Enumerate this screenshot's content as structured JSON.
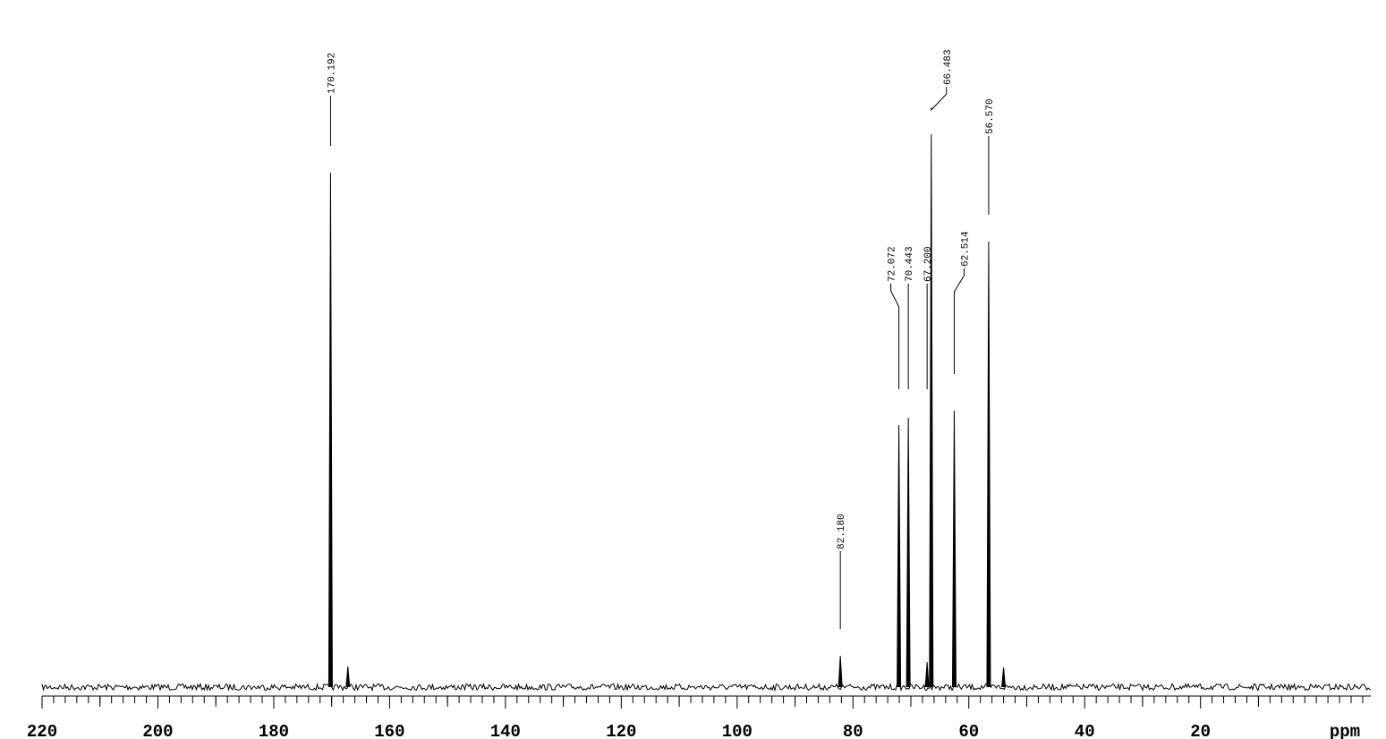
{
  "chart_data": {
    "type": "spectrum",
    "x": [
      170.192,
      167.2,
      82.18,
      72.072,
      70.443,
      67.2,
      66.483,
      62.514,
      56.57,
      54.0
    ],
    "x_labels": [
      "170.192",
      null,
      "82.180",
      "72.072",
      "70.443",
      "67.200",
      "66.483",
      "62.514",
      "56.570",
      null
    ],
    "values": [
      575,
      23,
      35,
      293,
      301,
      28,
      618,
      309,
      498,
      22
    ],
    "color": "#000000",
    "xlabel": "ppm",
    "xlim": [
      220,
      -9.4
    ],
    "ylim": [
      -10,
      768
    ],
    "xticks": [
      220,
      200,
      180,
      160,
      140,
      120,
      100,
      80,
      60,
      40,
      20
    ],
    "xminorticks": [
      218,
      216,
      214,
      212,
      210,
      208,
      206,
      204,
      202,
      198,
      196,
      194,
      192,
      190,
      188,
      186,
      184,
      182,
      178,
      176,
      174,
      172,
      170,
      168,
      166,
      164,
      162,
      158,
      156,
      154,
      152,
      150,
      148,
      146,
      144,
      142,
      138,
      136,
      134,
      132,
      130,
      128,
      126,
      124,
      122,
      118,
      116,
      114,
      112,
      110,
      108,
      106,
      104,
      102,
      98,
      96,
      94,
      92,
      90,
      88,
      86,
      84,
      82,
      78,
      76,
      74,
      72,
      70,
      68,
      66,
      64,
      62,
      58,
      56,
      54,
      52,
      50,
      48,
      46,
      44,
      42,
      38,
      36,
      34,
      32,
      30,
      28,
      26,
      24,
      22,
      18,
      16,
      14,
      12,
      10,
      8,
      6,
      4,
      2,
      0,
      -2,
      -4,
      -6,
      -8
    ],
    "xmajorticks": [
      210,
      190,
      170,
      150,
      130,
      110,
      90,
      70,
      50,
      30,
      10
    ]
  }
}
